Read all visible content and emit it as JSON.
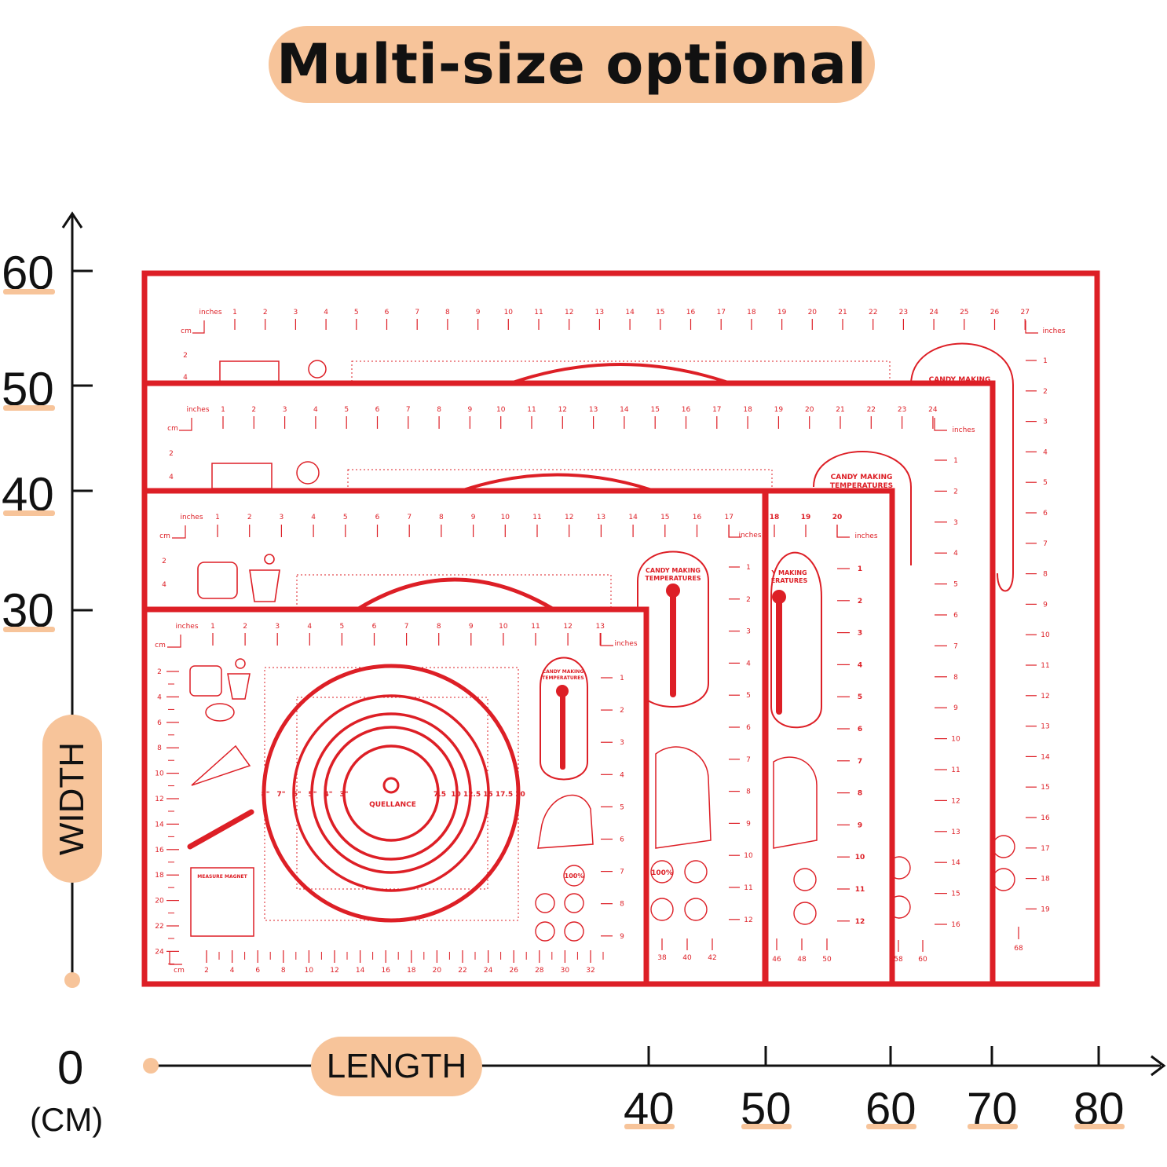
{
  "title": "Multi-size optional",
  "axes": {
    "y_axis_label": "WIDTH",
    "x_axis_label": "LENGTH",
    "origin": "0",
    "unit": "(CM)",
    "y_ticks": [
      "60",
      "50",
      "40",
      "30"
    ],
    "x_ticks": [
      "40",
      "50",
      "60",
      "70",
      "80"
    ]
  },
  "colors": {
    "accent": "#f7c49a",
    "mat_red": "#dd1f26",
    "axis": "#111111"
  },
  "mats": [
    {
      "name": "mat-80x60",
      "length_cm": 80,
      "width_cm": 60,
      "inch_ticks": [
        "1",
        "2",
        "3",
        "4",
        "5",
        "6",
        "7",
        "8",
        "9",
        "10",
        "11",
        "12",
        "13",
        "14",
        "15",
        "16",
        "17",
        "18",
        "19",
        "20",
        "21",
        "22",
        "23",
        "24",
        "25",
        "26",
        "27"
      ],
      "side_ticks": [
        "1",
        "2",
        "3",
        "4",
        "5",
        "6",
        "7",
        "8",
        "9",
        "10",
        "11",
        "12",
        "13",
        "14",
        "15",
        "16",
        "17",
        "18",
        "19"
      ],
      "cm_ticks": [
        "2",
        "4"
      ],
      "inches_label": "inches",
      "cm_label": "cm",
      "candy_label": "CANDY MAKING",
      "bottom_ticks": [
        "68"
      ]
    },
    {
      "name": "mat-70x50",
      "length_cm": 70,
      "width_cm": 50,
      "inch_ticks": [
        "1",
        "2",
        "3",
        "4",
        "5",
        "6",
        "7",
        "8",
        "9",
        "10",
        "11",
        "12",
        "13",
        "14",
        "15",
        "16",
        "17",
        "18",
        "19",
        "20",
        "21",
        "22",
        "23",
        "24"
      ],
      "side_ticks": [
        "1",
        "2",
        "3",
        "4",
        "5",
        "6",
        "7",
        "8",
        "9",
        "10",
        "11",
        "12",
        "13",
        "14",
        "15",
        "16"
      ],
      "cm_ticks": [
        "2",
        "4"
      ],
      "inches_label": "inches",
      "cm_label": "cm",
      "candy_label": "CANDY MAKING TEMPERATURES",
      "bottom_ticks": [
        "58",
        "60"
      ]
    },
    {
      "name": "mat-60x40",
      "length_cm": 60,
      "width_cm": 40,
      "inch_ticks": [
        "18",
        "19",
        "20"
      ],
      "side_ticks": [
        "1",
        "2",
        "3",
        "4",
        "5",
        "6",
        "7",
        "8",
        "9",
        "10",
        "11",
        "12"
      ],
      "inches_label": "inches",
      "candy_label": "CANDY MAKING TEMPERATURES",
      "bottom_ticks": [
        "46",
        "48",
        "50"
      ]
    },
    {
      "name": "mat-50x40",
      "length_cm": 50,
      "width_cm": 40,
      "inch_ticks": [
        "1",
        "2",
        "3",
        "4",
        "5",
        "6",
        "7",
        "8",
        "9",
        "10",
        "11",
        "12",
        "13",
        "14",
        "15",
        "16",
        "17"
      ],
      "side_ticks": [
        "1",
        "2",
        "3",
        "4",
        "5",
        "6",
        "7",
        "8",
        "9",
        "10",
        "11",
        "12"
      ],
      "cm_ticks": [
        "2",
        "4"
      ],
      "inches_label": "inches",
      "cm_label": "cm",
      "candy_label": "CANDY MAKING TEMPERATURES",
      "bottom_ticks": [
        "38",
        "40",
        "42"
      ]
    },
    {
      "name": "mat-40x30",
      "length_cm": 40,
      "width_cm": 30,
      "inch_ticks": [
        "1",
        "2",
        "3",
        "4",
        "5",
        "6",
        "7",
        "8",
        "9",
        "10",
        "11",
        "12",
        "13"
      ],
      "side_ticks": [
        "1",
        "2",
        "3",
        "4",
        "5",
        "6",
        "7",
        "8",
        "9"
      ],
      "cm_ticks": [
        "2",
        "4",
        "6",
        "8",
        "10",
        "12",
        "14",
        "16",
        "18",
        "20",
        "22",
        "24"
      ],
      "bottom_ticks": [
        "2",
        "4",
        "6",
        "8",
        "10",
        "12",
        "14",
        "16",
        "18",
        "20",
        "22",
        "24",
        "26",
        "28",
        "30",
        "32"
      ],
      "inches_label": "inches",
      "cm_label": "cm",
      "candy_label": "CANDY MAKING TEMPERATURES",
      "brand": "QUELLANCE",
      "circle_left_labels": [
        "8\"",
        "7\"",
        "6\"",
        "5\"",
        "4\"",
        "3\""
      ],
      "circle_right_labels": [
        "7.5",
        "10",
        "12.5",
        "15",
        "17.5",
        "20"
      ],
      "measure_label": "MEASURE MAGNET",
      "badge": "100%"
    }
  ]
}
